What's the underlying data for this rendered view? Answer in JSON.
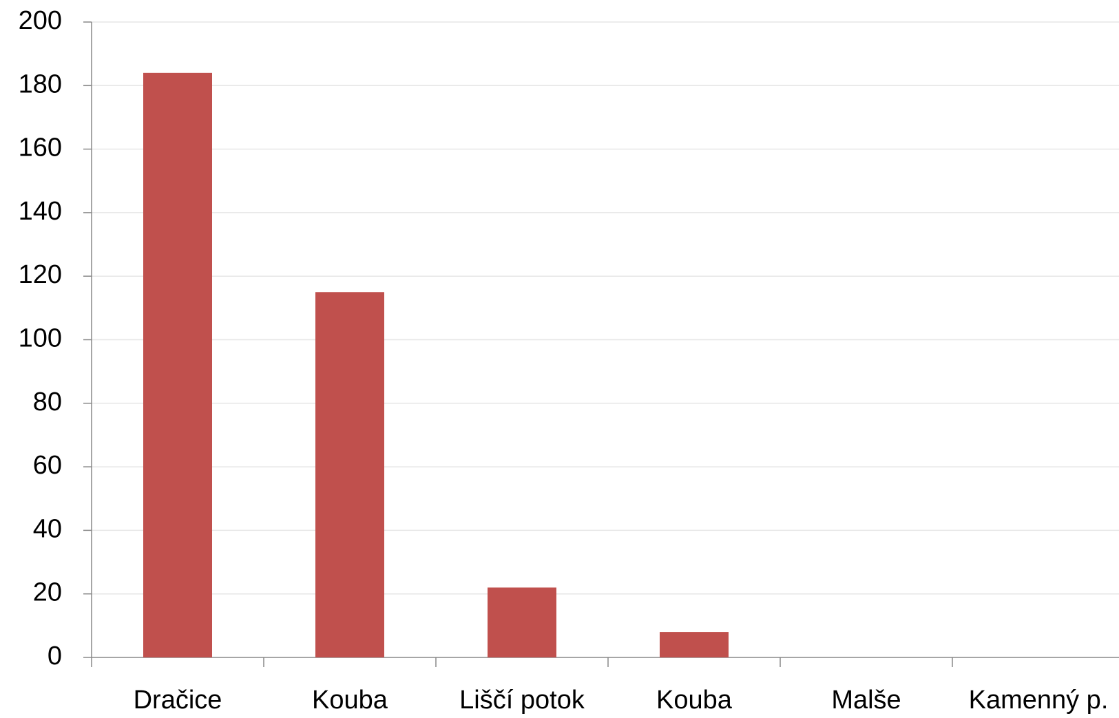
{
  "chart_data": {
    "type": "bar",
    "categories": [
      "Dračice",
      "Kouba",
      "Liščí potok",
      "Kouba",
      "Malše",
      "Kamenný p."
    ],
    "values": [
      184,
      115,
      22,
      8,
      0,
      0
    ],
    "color": "#c0504d",
    "ylim": [
      0,
      200
    ],
    "yticks": [
      0,
      20,
      40,
      60,
      80,
      100,
      120,
      140,
      160,
      180,
      200
    ],
    "grid": true
  }
}
